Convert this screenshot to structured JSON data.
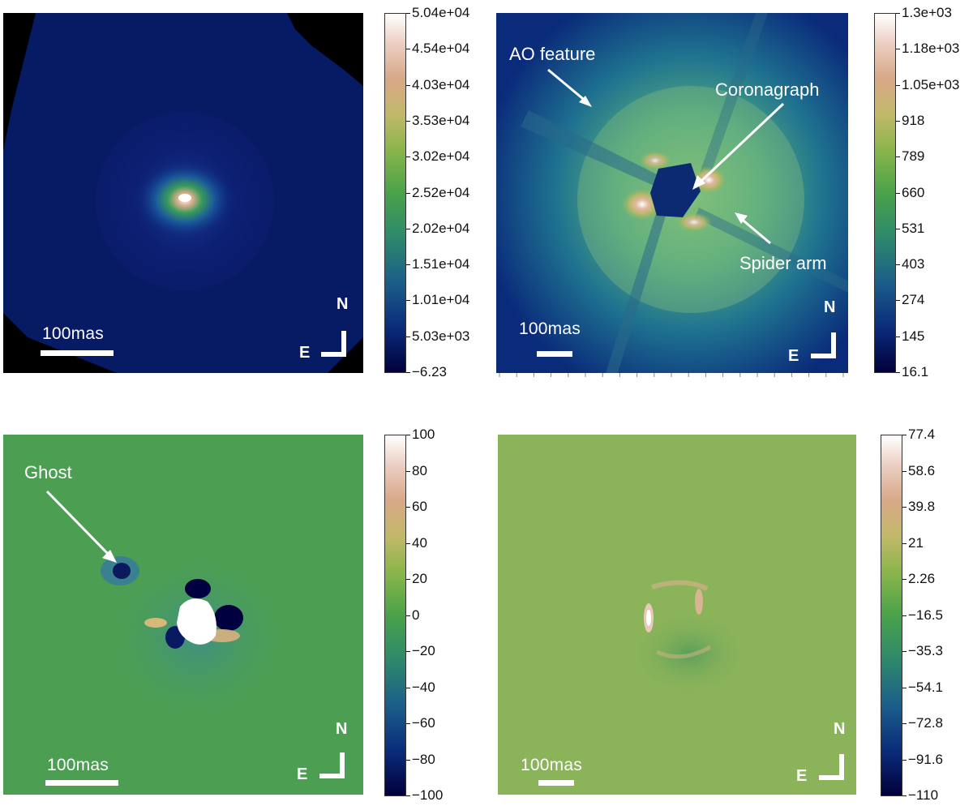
{
  "panels": [
    {
      "id": "top-left",
      "scalebar_label": "100mas",
      "compass": {
        "north": "N",
        "east": "E"
      },
      "colorbar_ticks": [
        "5.04e+04",
        "4.54e+04",
        "4.03e+04",
        "3.53e+04",
        "3.02e+04",
        "2.52e+04",
        "2.02e+04",
        "1.51e+04",
        "1.01e+04",
        "5.03e+03",
        "−6.23"
      ],
      "annotations": []
    },
    {
      "id": "top-right",
      "scalebar_label": "100mas",
      "compass": {
        "north": "N",
        "east": "E"
      },
      "colorbar_ticks": [
        "1.3e+03",
        "1.18e+03",
        "1.05e+03",
        "918",
        "789",
        "660",
        "531",
        "403",
        "274",
        "145",
        "16.1"
      ],
      "annotations": [
        {
          "label": "AO feature"
        },
        {
          "label": "Coronagraph"
        },
        {
          "label": "Spider arm"
        }
      ]
    },
    {
      "id": "bottom-left",
      "scalebar_label": "100mas",
      "compass": {
        "north": "N",
        "east": "E"
      },
      "colorbar_ticks": [
        "100",
        "80",
        "60",
        "40",
        "20",
        "0",
        "−20",
        "−40",
        "−60",
        "−80",
        "−100"
      ],
      "annotations": [
        {
          "label": "Ghost"
        }
      ]
    },
    {
      "id": "bottom-right",
      "scalebar_label": "100mas",
      "compass": {
        "north": "N",
        "east": "E"
      },
      "colorbar_ticks": [
        "77.4",
        "58.6",
        "39.8",
        "21",
        "2.26",
        "−16.5",
        "−35.3",
        "−54.1",
        "−72.8",
        "−91.6",
        "−110"
      ],
      "annotations": []
    }
  ],
  "colormap_colors": [
    "#02003a",
    "#0a2a7a",
    "#1b5e8a",
    "#2e8a6a",
    "#4aa24a",
    "#8ab54a",
    "#c2b86a",
    "#d8a888",
    "#ecd0c4",
    "#ffffff"
  ]
}
